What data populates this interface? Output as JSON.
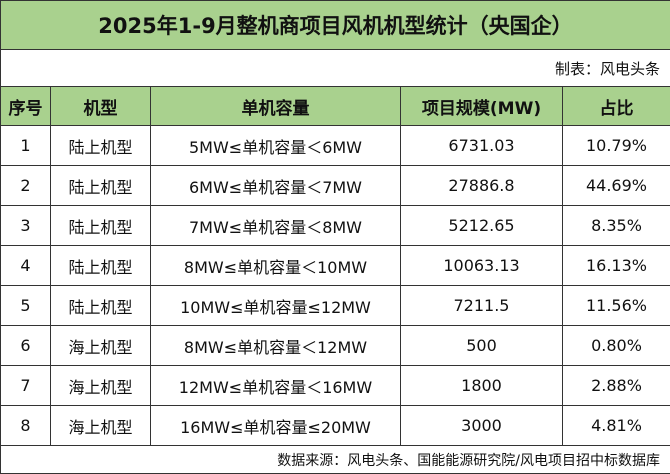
{
  "header": {
    "title": "2025年1-9月整机商项目风机机型统计（央国企）",
    "credit": "制表：风电头条"
  },
  "table": {
    "columns": [
      "序号",
      "机型",
      "单机容量",
      "项目规模(MW)",
      "占比"
    ],
    "rows": [
      [
        "1",
        "陆上机型",
        "5MW≤单机容量＜6MW",
        "6731.03",
        "10.79%"
      ],
      [
        "2",
        "陆上机型",
        "6MW≤单机容量＜7MW",
        "27886.8",
        "44.69%"
      ],
      [
        "3",
        "陆上机型",
        "7MW≤单机容量＜8MW",
        "5212.65",
        "8.35%"
      ],
      [
        "4",
        "陆上机型",
        "8MW≤单机容量＜10MW",
        "10063.13",
        "16.13%"
      ],
      [
        "5",
        "陆上机型",
        "10MW≤单机容量≤12MW",
        "7211.5",
        "11.56%"
      ],
      [
        "6",
        "海上机型",
        "8MW≤单机容量＜12MW",
        "500",
        "0.80%"
      ],
      [
        "7",
        "海上机型",
        "12MW≤单机容量＜16MW",
        "1800",
        "2.88%"
      ],
      [
        "8",
        "海上机型",
        "16MW≤单机容量≤20MW",
        "3000",
        "4.81%"
      ]
    ]
  },
  "footer": {
    "source": "数据来源：风电头条、国能能源研究院/风电项目招中标数据库"
  }
}
